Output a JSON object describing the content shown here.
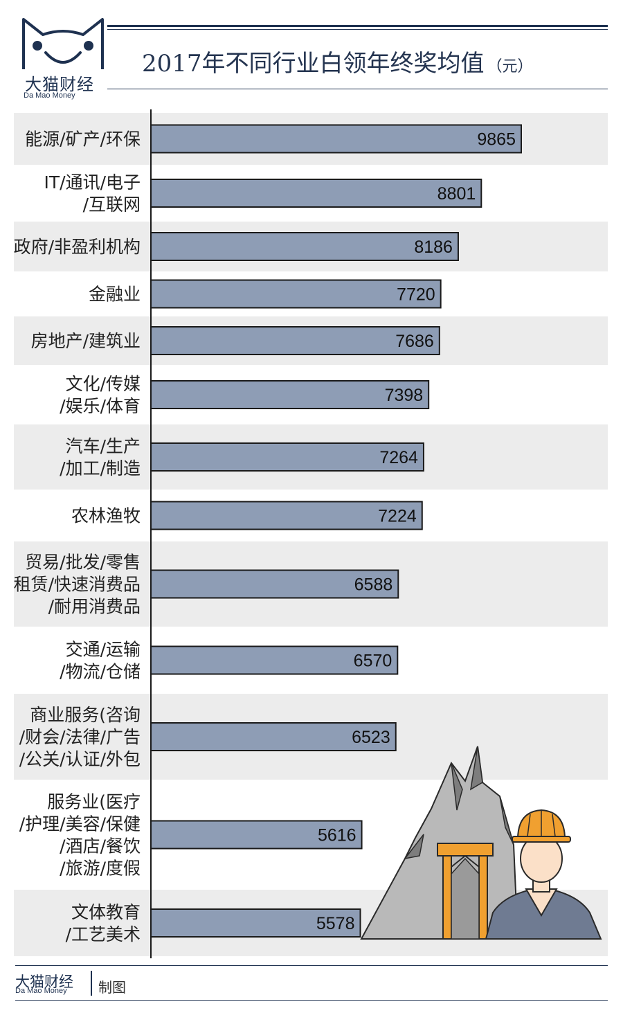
{
  "brand": {
    "name_cn": "大猫财经",
    "name_en": "Da Mao Money"
  },
  "title": {
    "main": "2017年不同行业白领年终奖均值",
    "unit": "（元）"
  },
  "footer": {
    "brand_cn": "大猫财经",
    "brand_en": "Da Mao Money",
    "note": "制图"
  },
  "colors": {
    "bar_fill": "#8e9db5",
    "bar_stroke": "#1a1a1a",
    "row_band": "#ececec",
    "brand_navy": "#1e3150"
  },
  "chart_data": {
    "type": "bar",
    "orientation": "horizontal",
    "categories": [
      [
        "能源/矿产/环保"
      ],
      [
        "IT/通讯/电子",
        "/互联网"
      ],
      [
        "政府/非盈利机构"
      ],
      [
        "金融业"
      ],
      [
        "房地产/建筑业"
      ],
      [
        "文化/传媒",
        "/娱乐/体育"
      ],
      [
        "汽车/生产",
        "/加工/制造"
      ],
      [
        "农林渔牧"
      ],
      [
        "贸易/批发/零售",
        "租赁/快速消费品",
        "/耐用消费品"
      ],
      [
        "交通/运输",
        "/物流/仓储"
      ],
      [
        "商业服务(咨询",
        "/财会/法律/广告",
        "/公关/认证/外包"
      ],
      [
        "服务业(医疗",
        "/护理/美容/保健",
        "/酒店/餐饮",
        "/旅游/度假"
      ],
      [
        "文体教育",
        "/工艺美术"
      ]
    ],
    "values": [
      9865,
      8801,
      8186,
      7720,
      7686,
      7398,
      7264,
      7224,
      6588,
      6570,
      6523,
      5616,
      5578
    ],
    "title": "2017年不同行业白领年终奖均值",
    "xlabel": "",
    "ylabel": "",
    "value_labels": "inside bar end",
    "grid": false,
    "legend": "none"
  }
}
